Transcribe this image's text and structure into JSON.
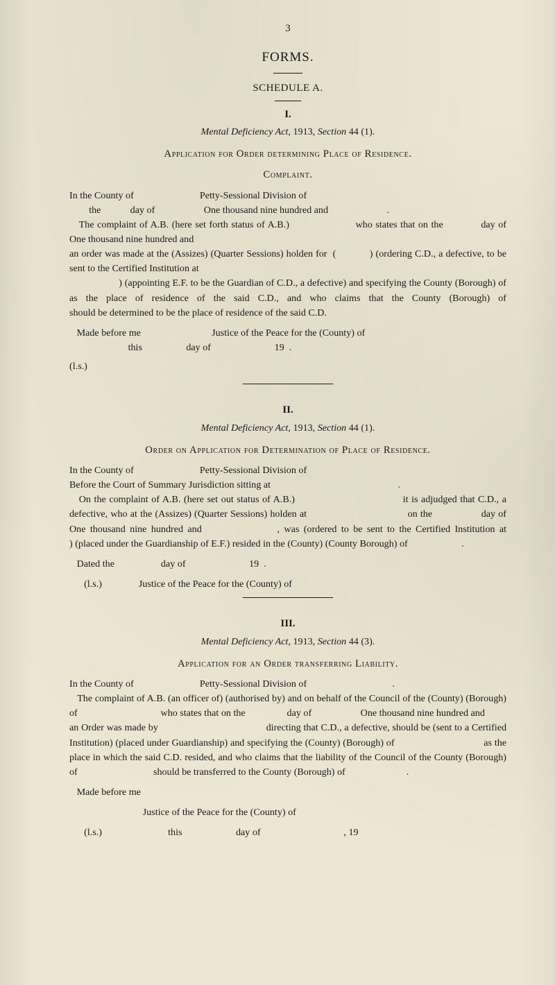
{
  "page_number": "3",
  "title_forms": "FORMS.",
  "schedule": "SCHEDULE A.",
  "sec1": {
    "roman": "I.",
    "act_line_html": "<span data-name='act-title' data-interactable='false'><em>Mental Deficiency Act,</em></span> <span class='plain'>1913, <em>Section</em> 44 (1).</span>",
    "heading": "Application for Order determining Place of Residence.",
    "subhead": "Complaint.",
    "body": "In the County of                           Petty-Sessional Division of\n        the            day of                    One thousand nine hundred and                        .\n   The complaint of A.B. (here set forth status of A.B.)                     who states that on the            day of                One thousand nine hundred and\nan order was made at the (Assizes) (Quarter Sessions) holden for  (            ) (ordering C.D., a defective, to be sent to the Certified Institution at\n                   ) (appointing E.F. to be the Guardian of C.D., a defective) and specifying the County (Borough) of                                         as the place of residence of the said C.D., and who claims that the County (Borough) of                               should be determined to be the place of residence of the said C.D.",
    "made_before": "   Made before me                             Justice of the Peace for the (County) of\n                        this                  day of                          19  .",
    "ls": "   (l.s.)"
  },
  "sec2": {
    "roman": "II.",
    "act_line_html": "<em>Mental Deficiency Act,</em> <span class='plain'>1913, <em>Section</em> 44 (1).</span>",
    "heading": "Order on Application for Determination of Place of Residence.",
    "body": "In the County of                           Petty-Sessional Division of\nBefore the Court of Summary Jurisdiction sitting at                                                    .\n   On the complaint of A.B. (here set out status of A.B.)                                  it is adjudged that C.D., a defective, who at the (Assizes) (Quarter Sessions) holden at                                   on the                 day of                                          One thousand nine hundred and                 , was (ordered to be sent to the Certified Institution at                          ) (placed under the Guardianship of E.F.) resided in the (County) (County Borough) of                      .",
    "dated": "   Dated the                   day of                          19  .",
    "justice": "      (l.s.)               Justice of the Peace for the (County) of"
  },
  "sec3": {
    "roman": "III.",
    "act_line_html": "<em>Mental Deficiency Act,</em> <span class='plain'>1913, <em>Section</em> 44 (3).</span>",
    "heading": "Application for an Order transferring Liability.",
    "body": "In the County of                           Petty-Sessional Division of                                   .\n   The complaint of A.B. (an officer of) (authorised by) and on behalf of the Council of the (County) (Borough) of                                  who states that on the                 day of                    One thousand nine hundred and\nan Order was made by                                         directing that C.D., a defective, should be (sent to a Certified Institution) (placed under Guardianship) and specifying the (County) (Borough) of                                  as the place in which the said C.D. resided, and who claims that the liability of the Council of the County (Borough) of                               should be transferred to the County (Borough) of                         .",
    "made_before": "   Made before me",
    "justice_line": "                              Justice of the Peace for the (County) of",
    "footer": "      (l.s.)                           this                      day of                                  , 19"
  }
}
